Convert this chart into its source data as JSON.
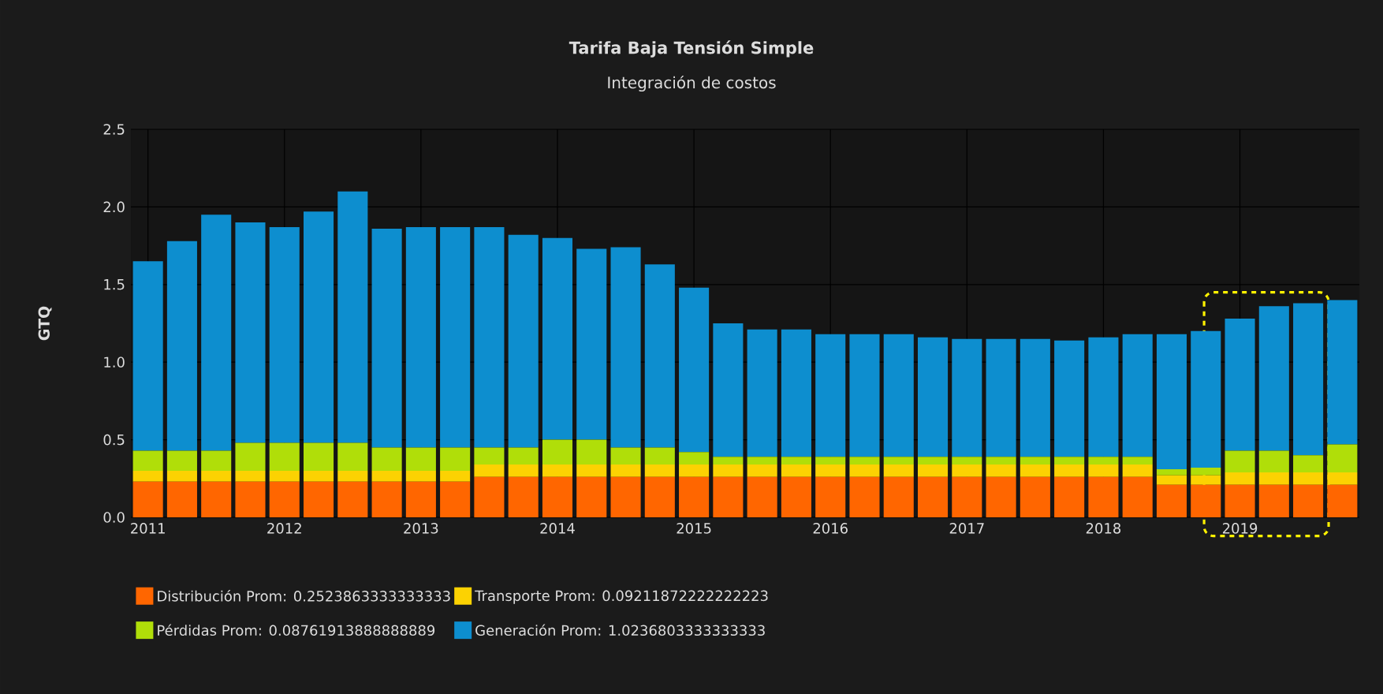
{
  "chart_data": {
    "type": "bar",
    "stacked": true,
    "title": "Tarifa Baja Tensión Simple",
    "subtitle": "Integración de costos",
    "ylabel": "GTQ",
    "categories": [
      "2011",
      null,
      null,
      null,
      "2012",
      null,
      null,
      null,
      "2013",
      null,
      null,
      null,
      "2014",
      null,
      null,
      null,
      "2015",
      null,
      null,
      null,
      "2016",
      null,
      null,
      null,
      "2017",
      null,
      null,
      null,
      "2018",
      null,
      null,
      null,
      "2019",
      null,
      null,
      null
    ],
    "series": [
      {
        "name": "Distribución Prom: 0.2523863333333333",
        "color": "#ff6600",
        "values": [
          0.23,
          0.23,
          0.23,
          0.23,
          0.23,
          0.23,
          0.23,
          0.23,
          0.23,
          0.23,
          0.26,
          0.26,
          0.26,
          0.26,
          0.26,
          0.26,
          0.26,
          0.26,
          0.26,
          0.26,
          0.26,
          0.26,
          0.26,
          0.26,
          0.26,
          0.26,
          0.26,
          0.26,
          0.26,
          0.26,
          0.21,
          0.21,
          0.21,
          0.21,
          0.21,
          0.21
        ]
      },
      {
        "name": "Transporte Prom: 0.09211872222222223",
        "color": "#fcd202",
        "values": [
          0.07,
          0.07,
          0.07,
          0.07,
          0.07,
          0.07,
          0.07,
          0.07,
          0.07,
          0.07,
          0.08,
          0.08,
          0.08,
          0.08,
          0.08,
          0.08,
          0.08,
          0.08,
          0.08,
          0.08,
          0.08,
          0.08,
          0.08,
          0.08,
          0.08,
          0.08,
          0.08,
          0.08,
          0.08,
          0.08,
          0.06,
          0.06,
          0.08,
          0.08,
          0.08,
          0.08
        ]
      },
      {
        "name": "Pérdidas Prom: 0.08761913888888889",
        "color": "#b0de09",
        "values": [
          0.13,
          0.13,
          0.13,
          0.18,
          0.18,
          0.18,
          0.18,
          0.15,
          0.15,
          0.15,
          0.11,
          0.11,
          0.16,
          0.16,
          0.11,
          0.11,
          0.08,
          0.05,
          0.05,
          0.05,
          0.05,
          0.05,
          0.05,
          0.05,
          0.05,
          0.05,
          0.05,
          0.05,
          0.05,
          0.05,
          0.04,
          0.05,
          0.14,
          0.14,
          0.11,
          0.18
        ]
      },
      {
        "name": "Generación Prom: 1.0236803333333333",
        "color": "#0d8ecf",
        "values": [
          1.22,
          1.35,
          1.52,
          1.42,
          1.39,
          1.49,
          1.62,
          1.41,
          1.42,
          1.42,
          1.42,
          1.37,
          1.3,
          1.23,
          1.29,
          1.18,
          1.06,
          0.86,
          0.82,
          0.82,
          0.79,
          0.79,
          0.79,
          0.77,
          0.76,
          0.76,
          0.76,
          0.75,
          0.77,
          0.79,
          0.87,
          0.88,
          0.85,
          0.93,
          0.98,
          0.93
        ]
      }
    ],
    "ylim": [
      0,
      2.5
    ],
    "yticks": [
      {
        "value": 0,
        "label": "0.0"
      },
      0.5,
      {
        "value": 1,
        "label": "1.0"
      },
      1.5,
      {
        "value": 2,
        "label": "2.0"
      },
      2.5
    ],
    "grid": true,
    "legend": "bottom"
  }
}
